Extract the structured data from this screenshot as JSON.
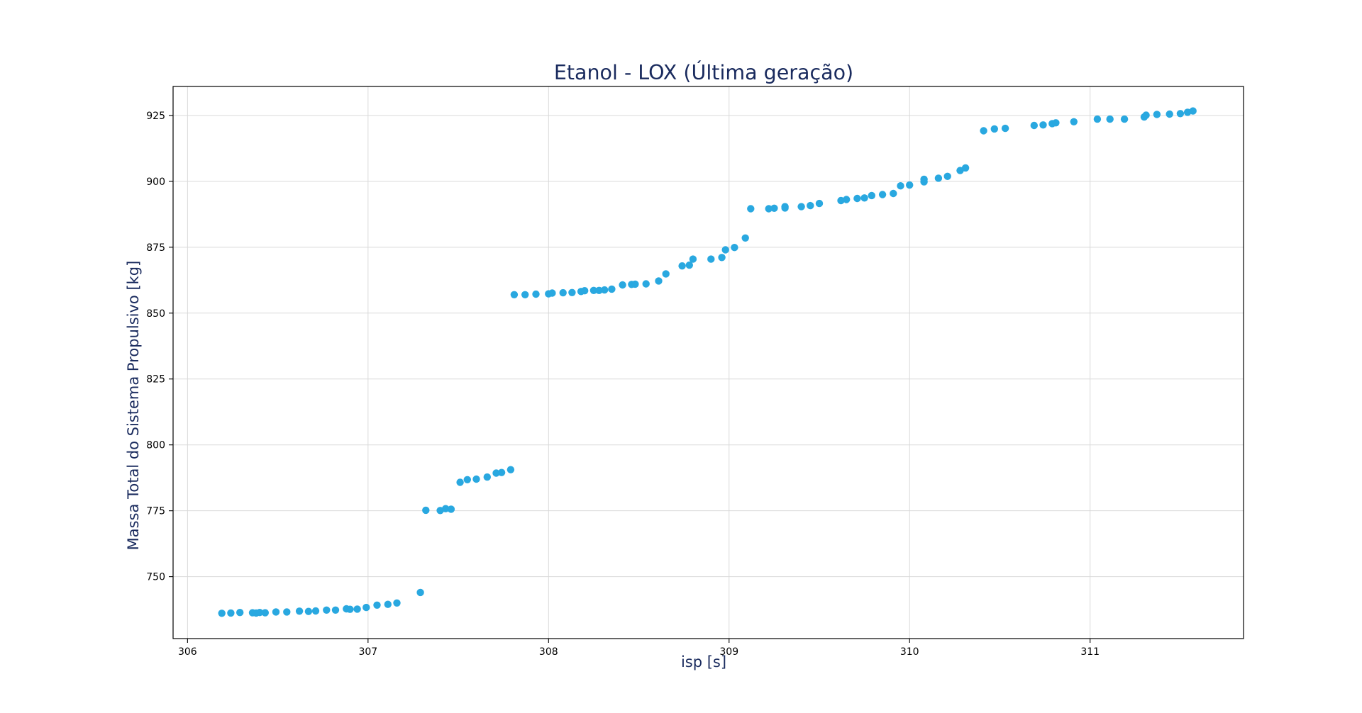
{
  "chart_data": {
    "type": "scatter",
    "title": "Etanol - LOX (Última geração)",
    "xlabel": "isp [s]",
    "ylabel": "Massa Total do Sistema Propulsivo [kg]",
    "xlim": [
      305.92,
      311.85
    ],
    "ylim": [
      726.5,
      936
    ],
    "xticks": [
      306,
      307,
      308,
      309,
      310,
      311
    ],
    "yticks": [
      750,
      775,
      800,
      825,
      850,
      875,
      900,
      925
    ],
    "grid": true,
    "legend": "none",
    "marker_color": "#29a8e0",
    "series": [
      {
        "x": [
          306.19,
          306.24,
          306.29,
          306.36,
          306.38,
          306.4,
          306.43,
          306.49,
          306.55,
          306.62,
          306.67,
          306.71,
          306.77,
          306.82,
          306.88,
          306.9,
          306.94,
          306.99,
          307.05,
          307.11,
          307.16,
          307.29,
          307.32,
          307.4,
          307.43,
          307.46,
          307.51,
          307.55,
          307.6,
          307.66,
          307.71,
          307.74,
          307.79,
          307.81,
          307.87,
          307.93,
          308.0,
          308.02,
          308.08,
          308.13,
          308.18,
          308.2,
          308.25,
          308.28,
          308.31,
          308.35,
          308.41,
          308.46,
          308.48,
          308.54,
          308.61,
          308.65,
          308.74,
          308.78,
          308.8,
          308.9,
          308.96,
          308.98,
          309.03,
          309.09,
          309.12,
          309.22,
          309.25,
          309.31,
          309.31,
          309.4,
          309.45,
          309.5,
          309.62,
          309.65,
          309.71,
          309.75,
          309.79,
          309.85,
          309.91,
          309.95,
          310.0,
          310.08,
          310.08,
          310.16,
          310.21,
          310.28,
          310.31,
          310.41,
          310.47,
          310.53,
          310.69,
          310.74,
          310.79,
          310.81,
          310.91,
          311.04,
          311.11,
          311.19,
          311.3,
          311.31,
          311.37,
          311.44,
          311.5,
          311.54,
          311.57
        ],
        "y": [
          736.1,
          736.2,
          736.4,
          736.3,
          736.2,
          736.4,
          736.3,
          736.6,
          736.6,
          736.9,
          736.8,
          737.0,
          737.3,
          737.3,
          737.8,
          737.6,
          737.7,
          738.3,
          739.2,
          739.5,
          740.0,
          744.0,
          775.2,
          775.1,
          775.8,
          775.6,
          785.8,
          786.8,
          787.0,
          787.8,
          789.3,
          789.5,
          790.6,
          857.0,
          857.0,
          857.2,
          857.3,
          857.6,
          857.7,
          857.8,
          858.2,
          858.5,
          858.6,
          858.6,
          858.8,
          859.1,
          860.7,
          860.9,
          861.0,
          861.1,
          862.2,
          864.9,
          867.9,
          868.2,
          870.5,
          870.5,
          871.1,
          874.0,
          874.9,
          878.5,
          889.6,
          889.6,
          889.8,
          889.9,
          890.4,
          890.4,
          890.8,
          891.6,
          892.7,
          893.1,
          893.5,
          893.7,
          894.6,
          895.0,
          895.4,
          898.3,
          898.6,
          899.8,
          900.8,
          901.2,
          901.9,
          904.1,
          905.1,
          919.2,
          919.9,
          920.1,
          921.2,
          921.4,
          921.9,
          922.2,
          922.6,
          923.6,
          923.6,
          923.6,
          924.4,
          925.1,
          925.4,
          925.5,
          925.7,
          926.2,
          926.7
        ]
      }
    ]
  }
}
